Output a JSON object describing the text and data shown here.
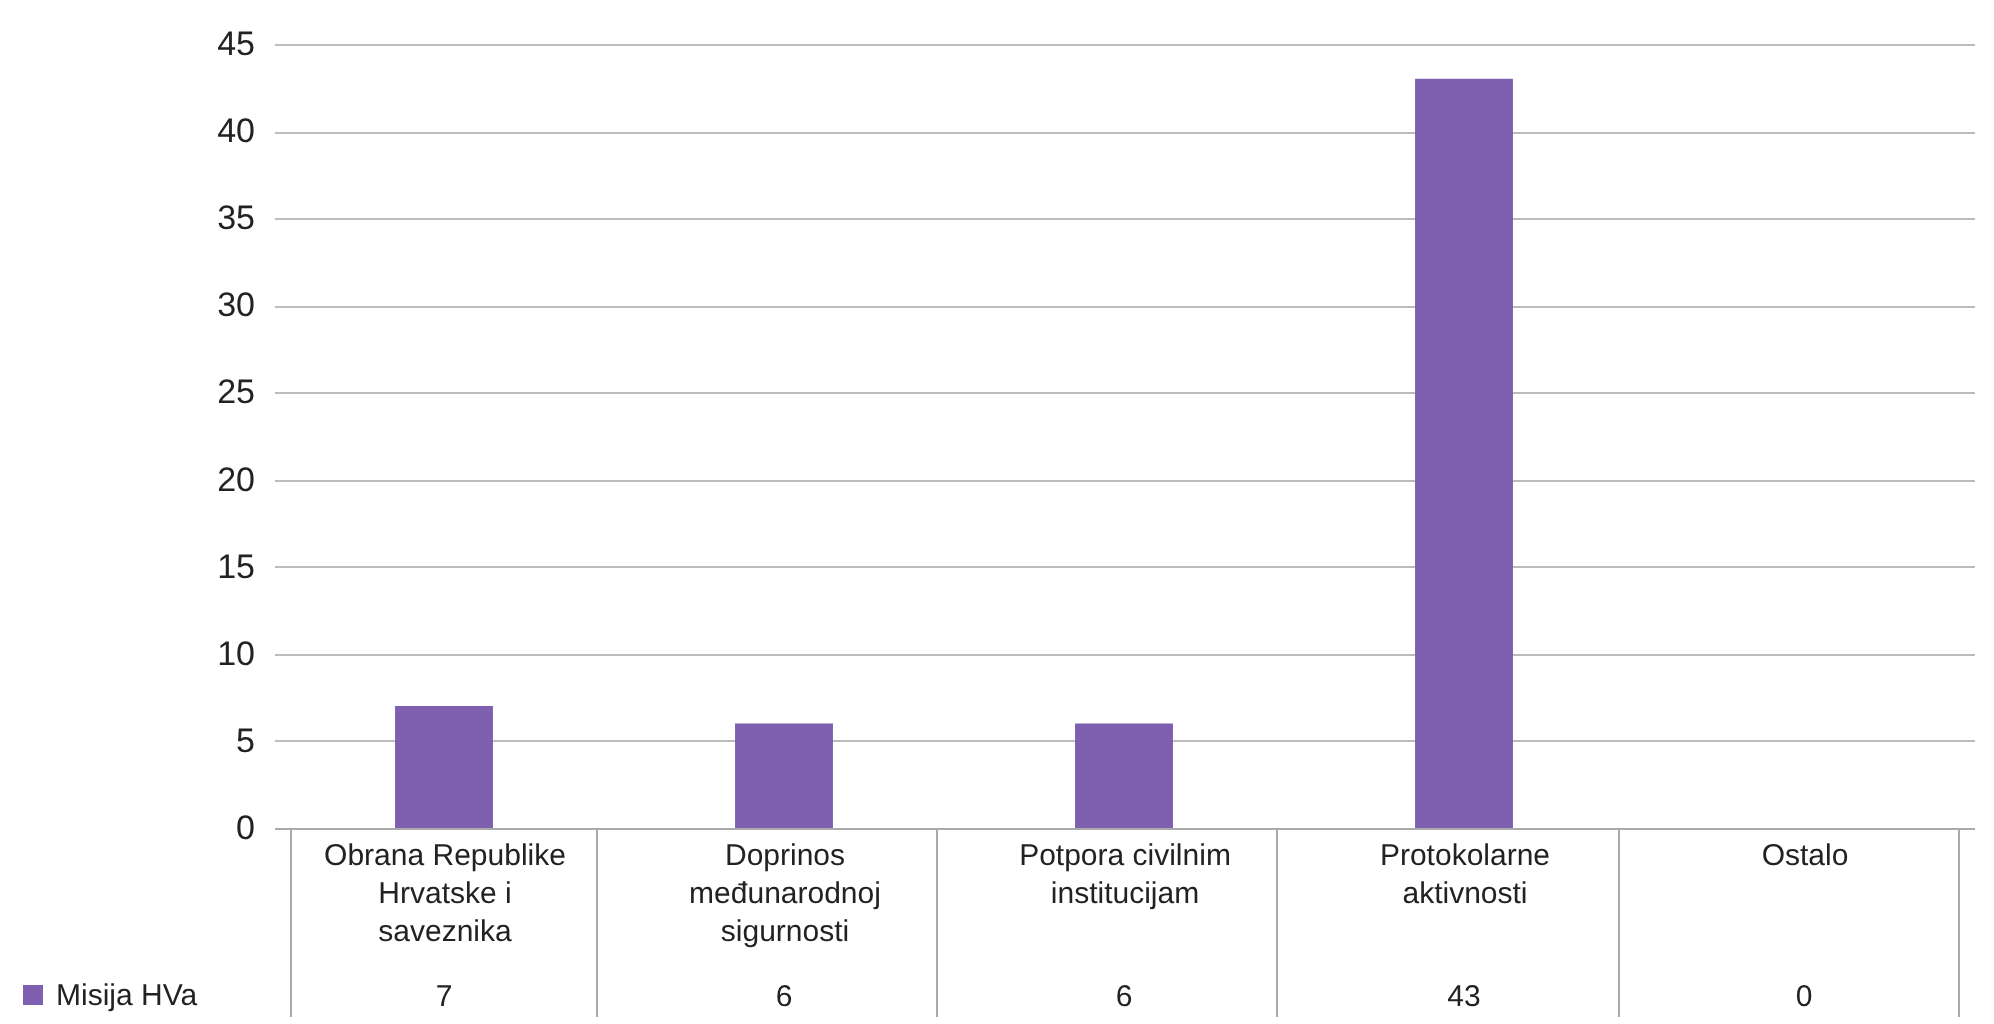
{
  "chart_data": {
    "type": "bar",
    "categories": [
      "Obrana Republike Hrvatske i saveznika",
      "Doprinos međunarodnoj sigurnosti",
      "Potpora civilnim institucijam",
      "Protokolarne aktivnosti",
      "Ostalo"
    ],
    "series": [
      {
        "name": "Misija HVa",
        "color": "#7f5fb0",
        "values": [
          7,
          6,
          6,
          43,
          0
        ]
      }
    ],
    "ylim": [
      0,
      45
    ],
    "yticks": [
      0,
      5,
      10,
      15,
      20,
      25,
      30,
      35,
      40,
      45
    ],
    "grid": "y",
    "legend": "bottom left",
    "data_labels": true
  }
}
